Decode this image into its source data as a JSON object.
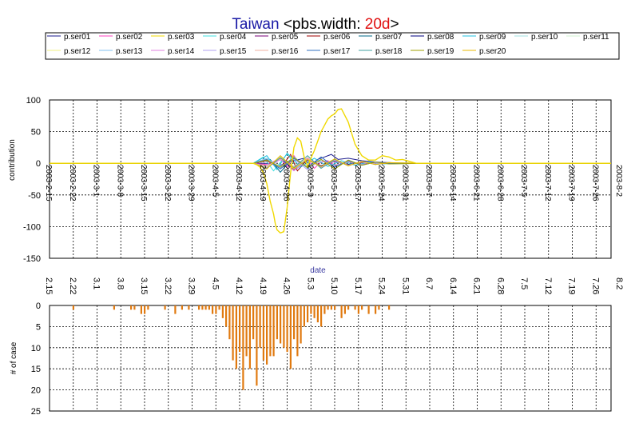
{
  "colors": {
    "title_main": "#1a1aa6",
    "title_rest": "#000000",
    "title_value": "#e01010",
    "date_label": "#3a3aa0",
    "case_bar": "#e07a10",
    "grid": "#000000"
  },
  "chart_data": [
    {
      "type": "line",
      "title_parts": [
        "Taiwan",
        " <pbs.width: ",
        "20d",
        ">"
      ],
      "xlabel": "date",
      "ylabel": "contribution",
      "ylim": [
        -150,
        100
      ],
      "yticks": [
        "100",
        "50",
        "0",
        "-50",
        "-100",
        "-150"
      ],
      "grid": true,
      "legend_position": "top",
      "x_tick_labels": [
        "2003-2-15",
        "2003-2-22",
        "2003-3-1",
        "2003-3-8",
        "2003-3-15",
        "2003-3-22",
        "2003-3-29",
        "2003-4-5",
        "2003-4-12",
        "2003-4-19",
        "2003-4-26",
        "2003-5-3",
        "2003-5-10",
        "2003-5-17",
        "2003-5-24",
        "2003-5-31",
        "2003-6-7",
        "2003-6-14",
        "2003-6-21",
        "2003-6-28",
        "2003-7-5",
        "2003-7-12",
        "2003-7-19",
        "2003-7-26",
        "2003-8-2"
      ],
      "series": [
        {
          "name": "p.ser01",
          "color": "#1a1a8c",
          "x": [
            60,
            64,
            68,
            72,
            75,
            77,
            79,
            81,
            83,
            85,
            88,
            92,
            96,
            100,
            104,
            110,
            116,
            120
          ],
          "y": [
            0,
            0,
            -3,
            4,
            8,
            -5,
            6,
            10,
            14,
            6,
            8,
            4,
            2,
            1,
            0,
            0,
            0,
            0
          ]
        },
        {
          "name": "p.ser02",
          "color": "#ff40c0",
          "x": [
            60,
            64,
            68,
            70,
            72,
            74,
            76,
            78,
            80,
            82,
            84,
            88,
            92,
            96,
            100,
            104,
            110
          ],
          "y": [
            0,
            -2,
            8,
            -6,
            12,
            -4,
            6,
            -8,
            2,
            4,
            -3,
            2,
            -1,
            1,
            0,
            0,
            0
          ]
        },
        {
          "name": "p.ser03",
          "color": "#f0d800",
          "x": [
            60,
            61,
            62,
            63,
            64,
            65,
            66,
            66.5,
            67,
            68,
            69,
            70,
            71,
            72,
            73,
            74,
            75,
            76,
            77,
            78,
            79,
            80,
            81,
            82,
            83,
            84,
            85,
            86,
            88,
            90,
            92,
            94,
            96,
            98,
            100,
            102,
            104,
            106,
            108,
            110
          ],
          "y": [
            0,
            -2,
            -6,
            -15,
            -32,
            -60,
            -80,
            -95,
            -105,
            -110,
            -108,
            -70,
            -15,
            25,
            40,
            35,
            10,
            -5,
            8,
            20,
            35,
            50,
            60,
            70,
            75,
            78,
            85,
            86,
            65,
            30,
            12,
            5,
            5,
            12,
            10,
            5,
            6,
            3,
            0,
            0
          ]
        },
        {
          "name": "p.ser04",
          "color": "#40e0e0",
          "x": [
            60,
            63,
            66,
            70,
            73,
            76,
            80,
            84,
            88,
            92,
            96,
            100,
            104,
            110
          ],
          "y": [
            0,
            10,
            -12,
            15,
            -8,
            6,
            -5,
            4,
            -2,
            2,
            -1,
            1,
            0,
            0
          ]
        },
        {
          "name": "p.ser05",
          "color": "#7a007a",
          "x": [
            60,
            64,
            68,
            72,
            76,
            80,
            84,
            88,
            92,
            96,
            100,
            104,
            110
          ],
          "y": [
            0,
            -6,
            8,
            -10,
            7,
            -4,
            5,
            -3,
            2,
            -1,
            1,
            0,
            0
          ]
        },
        {
          "name": "p.ser06",
          "color": "#a00000",
          "x": [
            60,
            64,
            68,
            71,
            73,
            76,
            80,
            84,
            88,
            92,
            96,
            100,
            110
          ],
          "y": [
            0,
            4,
            -8,
            14,
            -12,
            6,
            -4,
            3,
            -2,
            1,
            0,
            0,
            0
          ]
        },
        {
          "name": "p.ser07",
          "color": "#006a8a",
          "x": [
            60,
            65,
            68,
            72,
            76,
            80,
            84,
            88,
            92,
            96,
            100,
            110
          ],
          "y": [
            0,
            6,
            -14,
            10,
            -7,
            5,
            -4,
            3,
            -2,
            1,
            0,
            0
          ]
        },
        {
          "name": "p.ser08",
          "color": "#000080",
          "x": [
            60,
            64,
            68,
            72,
            76,
            80,
            84,
            88,
            92,
            96,
            100,
            110
          ],
          "y": [
            0,
            -4,
            6,
            -8,
            5,
            -4,
            3,
            -2,
            2,
            -1,
            0,
            0
          ]
        },
        {
          "name": "p.ser09",
          "color": "#20c0e0",
          "x": [
            60,
            64,
            67,
            70,
            74,
            78,
            82,
            86,
            90,
            94,
            98,
            102,
            110
          ],
          "y": [
            0,
            12,
            -10,
            16,
            -6,
            8,
            -5,
            4,
            -3,
            2,
            -1,
            0,
            0
          ]
        },
        {
          "name": "p.ser10",
          "color": "#a0e0e0",
          "x": [
            60,
            64,
            68,
            72,
            76,
            80,
            84,
            88,
            92,
            96,
            100,
            110
          ],
          "y": [
            0,
            -5,
            9,
            -6,
            7,
            -5,
            4,
            -3,
            2,
            -1,
            0,
            0
          ]
        },
        {
          "name": "p.ser11",
          "color": "#d0f0d0",
          "x": [
            60,
            64,
            68,
            72,
            76,
            80,
            84,
            88,
            92,
            96,
            100,
            110
          ],
          "y": [
            0,
            7,
            -5,
            8,
            -6,
            5,
            -4,
            3,
            -2,
            1,
            0,
            0
          ]
        },
        {
          "name": "p.ser12",
          "color": "#f0f080",
          "x": [
            60,
            64,
            68,
            72,
            76,
            80,
            84,
            88,
            92,
            96,
            100,
            110
          ],
          "y": [
            0,
            -6,
            10,
            -9,
            6,
            -7,
            5,
            -4,
            3,
            -2,
            1,
            0
          ]
        },
        {
          "name": "p.ser13",
          "color": "#80c0f0",
          "x": [
            60,
            64,
            68,
            72,
            76,
            80,
            84,
            88,
            92,
            96,
            100,
            110
          ],
          "y": [
            0,
            8,
            -7,
            10,
            -8,
            6,
            -5,
            4,
            -3,
            2,
            -1,
            0
          ]
        },
        {
          "name": "p.ser14",
          "color": "#e080e0",
          "x": [
            60,
            64,
            68,
            72,
            76,
            80,
            84,
            88,
            92,
            96,
            100,
            110
          ],
          "y": [
            0,
            -7,
            6,
            -12,
            8,
            -6,
            4,
            -3,
            2,
            -1,
            0,
            0
          ]
        },
        {
          "name": "p.ser15",
          "color": "#b0a0f0",
          "x": [
            60,
            64,
            68,
            72,
            76,
            80,
            84,
            88,
            92,
            96,
            100,
            110
          ],
          "y": [
            0,
            5,
            -8,
            7,
            -10,
            6,
            -5,
            4,
            -2,
            1,
            0,
            0
          ]
        },
        {
          "name": "p.ser16",
          "color": "#f0b0a0",
          "x": [
            60,
            64,
            68,
            72,
            76,
            80,
            84,
            88,
            92,
            96,
            100,
            110
          ],
          "y": [
            0,
            -4,
            7,
            -5,
            9,
            -7,
            5,
            -3,
            2,
            -1,
            0,
            0
          ]
        },
        {
          "name": "p.ser17",
          "color": "#3070c0",
          "x": [
            60,
            64,
            68,
            72,
            76,
            80,
            84,
            88,
            92,
            96,
            100,
            110
          ],
          "y": [
            0,
            6,
            -9,
            8,
            -6,
            10,
            -6,
            4,
            -3,
            2,
            0,
            0
          ]
        },
        {
          "name": "p.ser18",
          "color": "#40a0a0",
          "x": [
            60,
            64,
            68,
            72,
            76,
            80,
            84,
            88,
            92,
            96,
            100,
            110
          ],
          "y": [
            0,
            -8,
            9,
            -7,
            12,
            -8,
            6,
            -4,
            3,
            -2,
            1,
            0
          ]
        },
        {
          "name": "p.ser19",
          "color": "#a0a000",
          "x": [
            60,
            64,
            68,
            72,
            76,
            80,
            84,
            88,
            92,
            96,
            100,
            110
          ],
          "y": [
            0,
            5,
            -6,
            9,
            -7,
            6,
            -9,
            5,
            -3,
            2,
            -1,
            0
          ]
        },
        {
          "name": "p.ser20",
          "color": "#e8b800",
          "x": [
            60,
            64,
            68,
            72,
            76,
            80,
            84,
            88,
            92,
            96,
            100,
            110
          ],
          "y": [
            0,
            -9,
            12,
            -8,
            6,
            -5,
            7,
            -4,
            3,
            -2,
            1,
            0
          ]
        }
      ]
    },
    {
      "type": "bar",
      "ylabel": "# of case",
      "ylim": [
        0,
        25
      ],
      "inverted": true,
      "yticks": [
        "0",
        "5",
        "10",
        "15",
        "20",
        "25"
      ],
      "x_tick_labels": [
        "2.15",
        "2.22",
        "3.1",
        "3.8",
        "3.15",
        "3.22",
        "3.29",
        "4.5",
        "4.12",
        "4.19",
        "4.26",
        "5.3",
        "5.10",
        "5.17",
        "5.24",
        "5.31",
        "6.7",
        "6.14",
        "6.21",
        "6.28",
        "7.5",
        "7.12",
        "7.19",
        "7.26",
        "8.2"
      ],
      "days": [
        7,
        19,
        24,
        25,
        27,
        28,
        29,
        34,
        37,
        39,
        41,
        44,
        45,
        46,
        47,
        48,
        49,
        50,
        51,
        52,
        53,
        54,
        55,
        56,
        57,
        58,
        59,
        60,
        61,
        62,
        63,
        64,
        65,
        66,
        67,
        68,
        69,
        70,
        71,
        72,
        73,
        74,
        75,
        76,
        77,
        78,
        79,
        80,
        81,
        82,
        83,
        84,
        86,
        87,
        88,
        90,
        91,
        92,
        94,
        96,
        97,
        100
      ],
      "values": [
        1,
        1,
        1,
        1,
        2,
        2,
        1,
        1,
        2,
        1,
        1,
        1,
        1,
        1,
        1,
        2,
        2,
        1,
        3,
        5,
        8,
        13,
        15,
        11,
        20,
        12,
        15,
        8,
        19,
        10,
        13,
        14,
        12,
        12,
        8,
        9,
        10,
        11,
        15,
        8,
        12,
        9,
        5,
        4,
        2,
        3,
        4,
        5,
        2,
        1,
        1,
        1,
        3,
        2,
        1,
        1,
        2,
        1,
        2,
        2,
        1,
        1
      ]
    }
  ]
}
